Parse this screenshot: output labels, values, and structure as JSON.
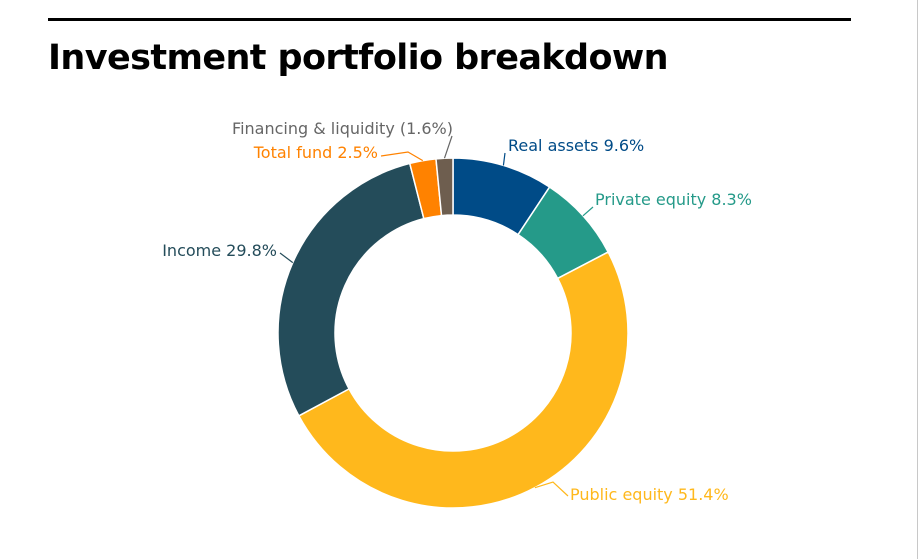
{
  "chart_data": {
    "type": "pie",
    "variant": "donut",
    "title": "Investment portfolio breakdown",
    "slices": [
      {
        "label": "Real assets 9.6%",
        "value": 9.6,
        "color": "#004b87"
      },
      {
        "label": "Private equity 8.3%",
        "value": 8.3,
        "color": "#259a89"
      },
      {
        "label": "Public equity 51.4%",
        "value": 51.4,
        "color": "#ffb81c"
      },
      {
        "label": "Income 29.8%",
        "value": 29.8,
        "color": "#244c5a"
      },
      {
        "label": "Total fund 2.5%",
        "value": 2.5,
        "color": "#ff8200"
      },
      {
        "label": "Financing & liquidity (1.6%)",
        "value": 1.6,
        "color": "#6e5e4f",
        "label_color": "#666666"
      }
    ],
    "start_angle": "12 o'clock",
    "direction": "clockwise",
    "legend": "none"
  }
}
